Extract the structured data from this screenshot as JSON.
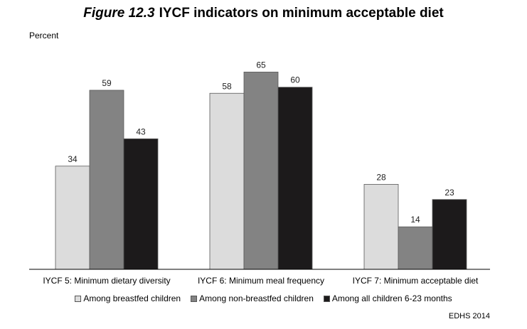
{
  "chart_data": {
    "type": "bar",
    "title_prefix": "Figure 12.3",
    "title": "IYCF indicators on minimum acceptable diet",
    "ylabel": "Percent",
    "xlabel": "",
    "ylim": [
      0,
      70
    ],
    "categories": [
      "IYCF 5: Minimum dietary diversity",
      "IYCF 6: Minimum meal frequency",
      "IYCF 7: Minimum acceptable diet"
    ],
    "series": [
      {
        "name": "Among breastfed children",
        "values": [
          34,
          58,
          28
        ],
        "color": "#dcdcdc"
      },
      {
        "name": "Among non-breastfed children",
        "values": [
          59,
          65,
          14
        ],
        "color": "#838383"
      },
      {
        "name": "Among all children 6-23 months",
        "values": [
          43,
          60,
          23
        ],
        "color": "#1c1a1b"
      }
    ],
    "grid": false,
    "legend_position": "bottom",
    "source": "EDHS 2014"
  }
}
